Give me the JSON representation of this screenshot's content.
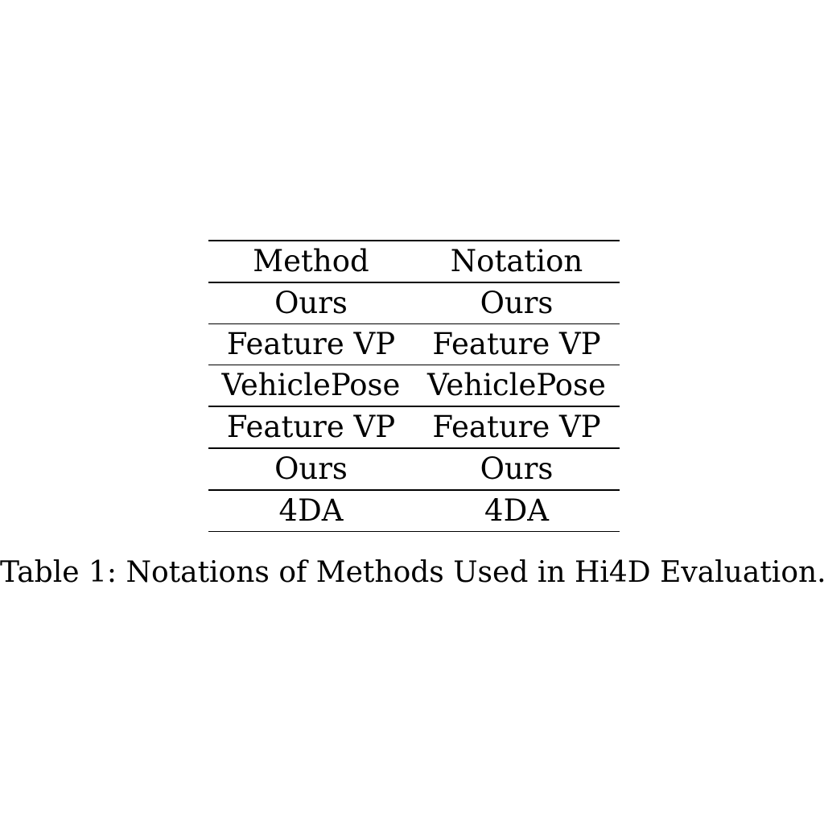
{
  "table": {
    "headers": [
      "Method",
      "Notation"
    ],
    "rows": [
      [
        "Ours",
        "Ours"
      ],
      [
        "Feature VP",
        "Feature VP"
      ],
      [
        "VehiclePose",
        "VehiclePose"
      ],
      [
        "Feature VP",
        "Feature VP"
      ],
      [
        "Ours",
        "Ours"
      ],
      [
        "4DA",
        "4DA"
      ]
    ]
  },
  "caption": "Table 1: Notations of Methods Used in Hi4D Evaluation."
}
